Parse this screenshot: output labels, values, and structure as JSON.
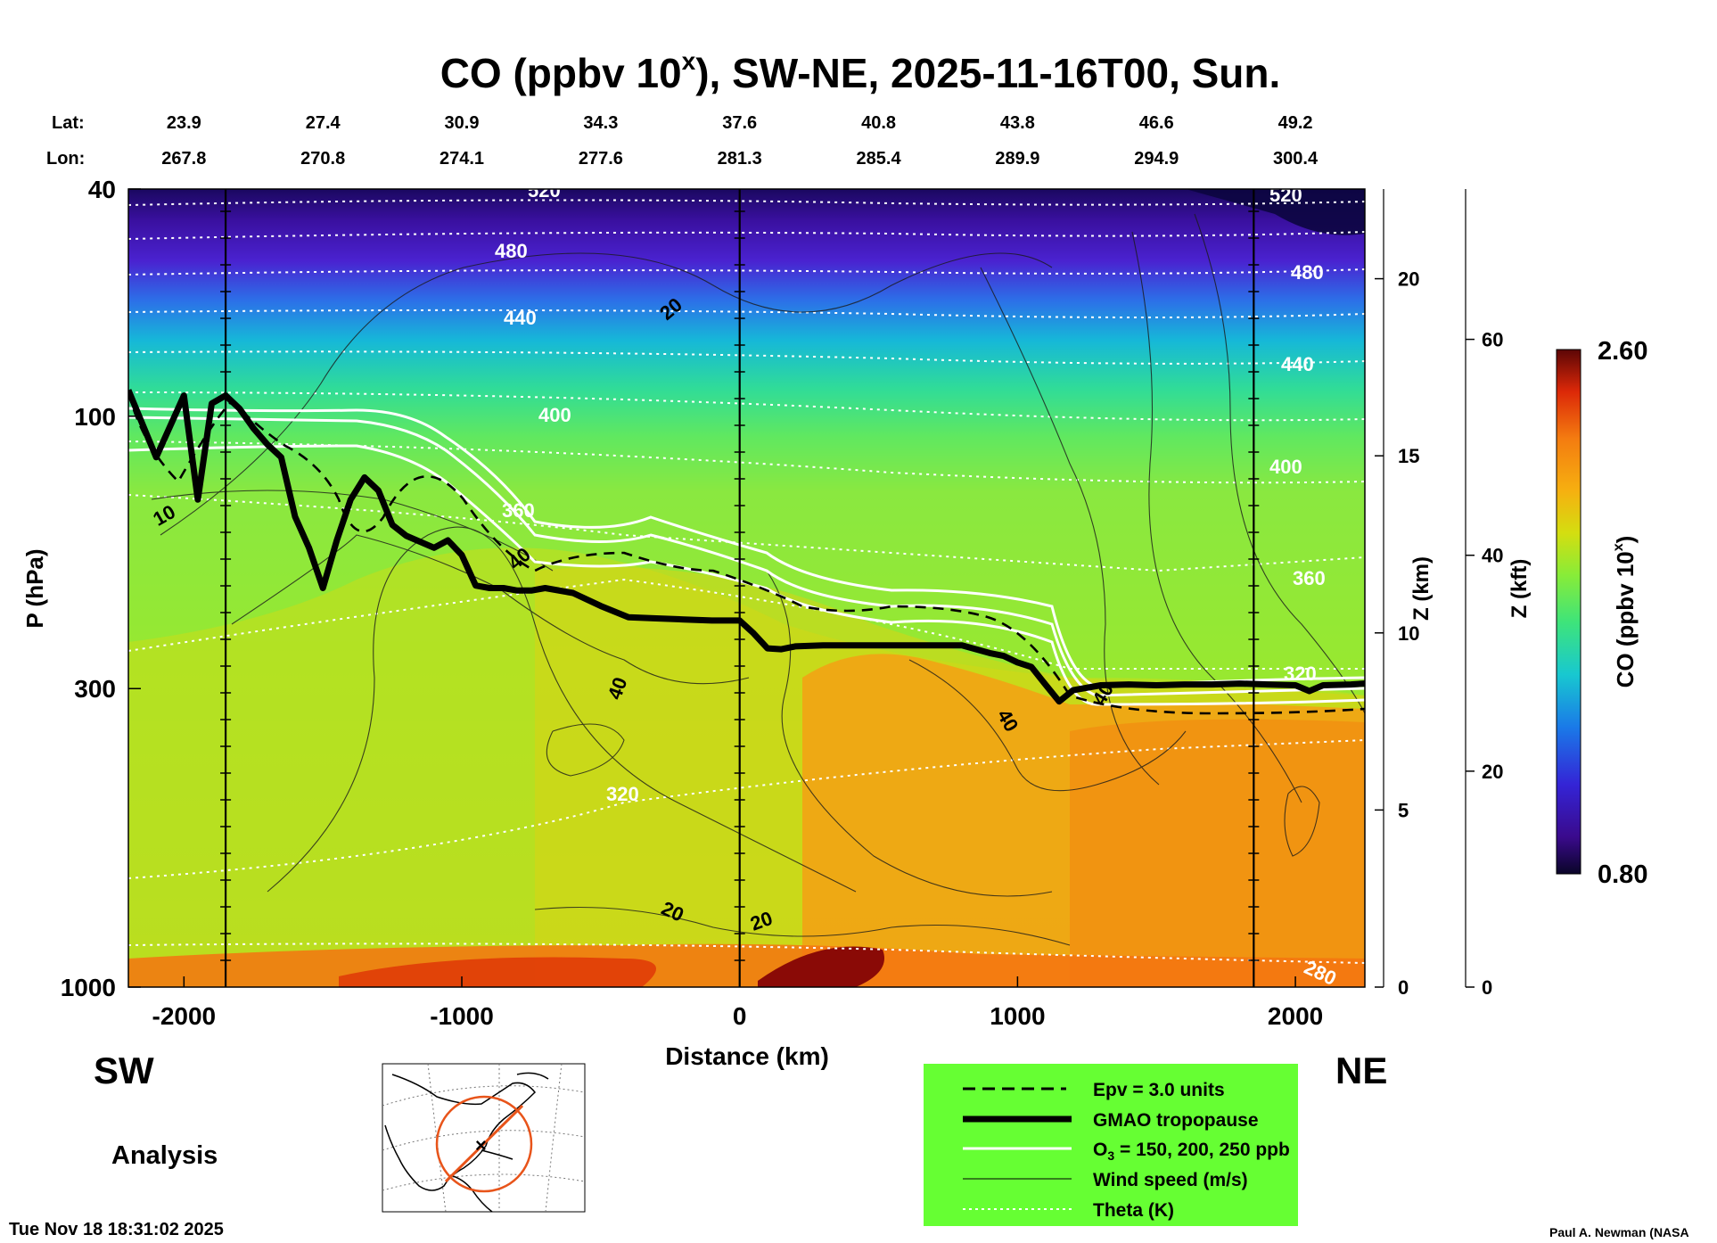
{
  "chart_data": {
    "type": "heatmap",
    "title_main": "CO (ppbv 10",
    "title_exponent": "x",
    "title_rest": "), SW-NE, 2025-11-16T00, Sun.",
    "lat_label": "Lat:",
    "lon_label": "Lon:",
    "lat": [
      "23.9",
      "27.4",
      "30.9",
      "34.3",
      "37.6",
      "40.8",
      "43.8",
      "46.6",
      "49.2"
    ],
    "lon": [
      "267.8",
      "270.8",
      "274.1",
      "277.6",
      "281.3",
      "285.4",
      "289.9",
      "294.9",
      "300.4"
    ],
    "station_distances": [
      -2000,
      -1500,
      -1000,
      -500,
      0,
      500,
      1000,
      1500,
      2000
    ],
    "xlabel": "Distance (km)",
    "xlim": [
      -2200,
      2250
    ],
    "xticks": [
      -2000,
      -1000,
      0,
      1000,
      2000
    ],
    "ylabel_left": "P (hPa)",
    "pressure_log_scale": true,
    "ylim_pressure": [
      1000,
      40
    ],
    "pressure_ticks": [
      40,
      100,
      300,
      1000
    ],
    "ylabel_z_km": "Z (km)",
    "z_km_ticks": [
      0,
      5,
      10,
      15,
      20
    ],
    "ylabel_z_kft": "Z (kft)",
    "z_kft_ticks": [
      0,
      20,
      40,
      60
    ],
    "vertical_lines_km": [
      -1850,
      0,
      1850
    ],
    "tropopause": {
      "name": "GMAO tropopause",
      "x": [
        -2200,
        -2100,
        -2000,
        -1950,
        -1900,
        -1850,
        -1800,
        -1750,
        -1700,
        -1650,
        -1600,
        -1550,
        -1500,
        -1450,
        -1400,
        -1350,
        -1300,
        -1250,
        -1200,
        -1100,
        -1050,
        -1000,
        -950,
        -900,
        -850,
        -800,
        -750,
        -700,
        -600,
        -500,
        -400,
        -300,
        -200,
        -100,
        0,
        50,
        100,
        150,
        200,
        300,
        400,
        500,
        600,
        700,
        800,
        900,
        950,
        1000,
        1050,
        1100,
        1150,
        1200,
        1300,
        1400,
        1500,
        1600,
        1700,
        1800,
        1900,
        2000,
        2050,
        2100,
        2200,
        2250
      ],
      "pressure": [
        90,
        118,
        92,
        140,
        95,
        92,
        97,
        105,
        112,
        118,
        150,
        170,
        200,
        165,
        140,
        128,
        135,
        155,
        162,
        170,
        165,
        175,
        198,
        200,
        200,
        202,
        202,
        200,
        204,
        215,
        225,
        226,
        227,
        228,
        228,
        240,
        255,
        256,
        253,
        252,
        252,
        252,
        252,
        252,
        252,
        260,
        263,
        270,
        275,
        295,
        316,
        302,
        296,
        295,
        296,
        295,
        295,
        294,
        295,
        296,
        303,
        296,
        295,
        294
      ]
    },
    "theta_contours": {
      "name": "Theta (K)",
      "labels": [
        "520",
        "480",
        "440",
        "400",
        "360",
        "320",
        "280"
      ]
    },
    "wind_contours": {
      "name": "Wind speed (m/s)",
      "labels": [
        "20",
        "40",
        "10"
      ]
    },
    "colorbar": {
      "label": "CO (ppbv 10",
      "label_exponent": "x",
      "label_end": ")",
      "min": "0.80",
      "max": "2.60"
    },
    "legend": {
      "items": [
        "Epv = 3.0 units",
        "GMAO tropopause",
        "O",
        "Wind speed (m/s)",
        "Theta (K)"
      ],
      "o3_main": "O",
      "o3_sub": "3",
      "o3_rest": " = 150, 200, 250 ppb",
      "color": "#66ff33",
      "placement": "bottom-right"
    }
  },
  "left_direction": "SW",
  "right_direction": "NE",
  "analysis_label": "Analysis",
  "timestamp": "Tue Nov 18 18:31:02 2025",
  "credit": "Paul A. Newman (NASA"
}
